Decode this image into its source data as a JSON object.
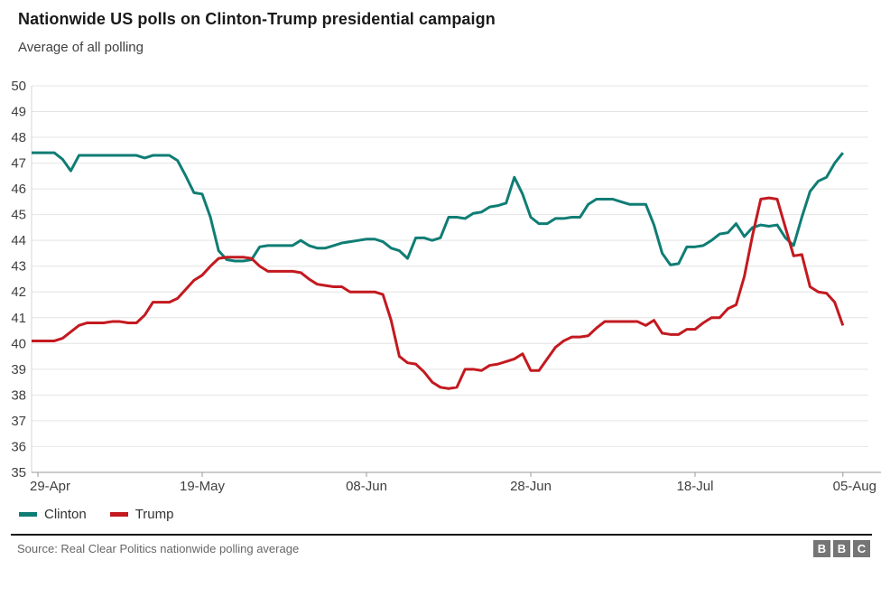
{
  "header": {
    "title": "Nationwide US polls on Clinton-Trump presidential campaign",
    "subtitle": "Average of all polling"
  },
  "chart_data": {
    "type": "line",
    "title": "Nationwide US polls on Clinton-Trump presidential campaign",
    "subtitle": "Average of all polling",
    "grid": true,
    "legend_position": "bottom-left",
    "x_axis": {
      "unit": "days since 29-Apr-2016",
      "point_count": 99,
      "tick_labels": [
        "29-Apr",
        "19-May",
        "08-Jun",
        "28-Jun",
        "18-Jul",
        "05-Aug"
      ],
      "tick_day_indices": [
        0,
        20,
        40,
        60,
        80,
        98
      ]
    },
    "y_axis": {
      "min": 35,
      "max": 50,
      "ticks": [
        35,
        36,
        37,
        38,
        39,
        40,
        41,
        42,
        43,
        44,
        45,
        46,
        47,
        48,
        49,
        50
      ]
    },
    "series": [
      {
        "name": "Clinton",
        "color": "#0f7d74",
        "values": [
          47.4,
          47.4,
          47.4,
          47.15,
          46.7,
          47.3,
          47.3,
          47.3,
          47.3,
          47.3,
          47.3,
          47.3,
          47.3,
          47.2,
          47.3,
          47.3,
          47.3,
          47.1,
          46.5,
          45.85,
          45.8,
          44.9,
          43.6,
          43.25,
          43.2,
          43.2,
          43.25,
          43.75,
          43.8,
          43.8,
          43.8,
          43.8,
          44.0,
          43.8,
          43.7,
          43.7,
          43.8,
          43.9,
          43.95,
          44.0,
          44.05,
          44.05,
          43.95,
          43.7,
          43.6,
          43.3,
          44.1,
          44.1,
          44.0,
          44.1,
          44.9,
          44.9,
          44.85,
          45.05,
          45.1,
          45.3,
          45.35,
          45.45,
          46.45,
          45.8,
          44.9,
          44.65,
          44.65,
          44.85,
          44.85,
          44.9,
          44.9,
          45.4,
          45.6,
          45.6,
          45.6,
          45.5,
          45.4,
          45.4,
          45.4,
          44.6,
          43.5,
          43.05,
          43.1,
          43.75,
          43.75,
          43.8,
          44.0,
          44.25,
          44.3,
          44.65,
          44.15,
          44.5,
          44.6,
          44.55,
          44.6,
          44.1,
          43.8,
          44.9,
          45.9,
          46.3,
          46.45,
          47.0,
          47.4
        ]
      },
      {
        "name": "Trump",
        "color": "#c3191f",
        "values": [
          40.1,
          40.1,
          40.1,
          40.2,
          40.45,
          40.7,
          40.8,
          40.8,
          40.8,
          40.85,
          40.85,
          40.8,
          40.8,
          41.1,
          41.6,
          41.6,
          41.6,
          41.75,
          42.1,
          42.45,
          42.65,
          43.0,
          43.3,
          43.35,
          43.35,
          43.35,
          43.3,
          43.0,
          42.8,
          42.8,
          42.8,
          42.8,
          42.75,
          42.5,
          42.3,
          42.25,
          42.2,
          42.2,
          42.0,
          42.0,
          42.0,
          42.0,
          41.9,
          40.9,
          39.5,
          39.25,
          39.2,
          38.9,
          38.5,
          38.3,
          38.25,
          38.3,
          39.0,
          39.0,
          38.95,
          39.15,
          39.2,
          39.3,
          39.4,
          39.6,
          38.95,
          38.95,
          39.4,
          39.85,
          40.1,
          40.25,
          40.25,
          40.3,
          40.6,
          40.85,
          40.85,
          40.85,
          40.85,
          40.85,
          40.7,
          40.9,
          40.4,
          40.35,
          40.35,
          40.55,
          40.55,
          40.8,
          41.0,
          41.0,
          41.35,
          41.5,
          42.6,
          44.2,
          45.6,
          45.65,
          45.6,
          44.5,
          43.4,
          43.45,
          42.2,
          42.0,
          41.95,
          41.6,
          40.7
        ]
      }
    ]
  },
  "footer": {
    "source": "Source: Real Clear Politics nationwide polling average",
    "logo_letters": [
      "B",
      "B",
      "C"
    ]
  }
}
